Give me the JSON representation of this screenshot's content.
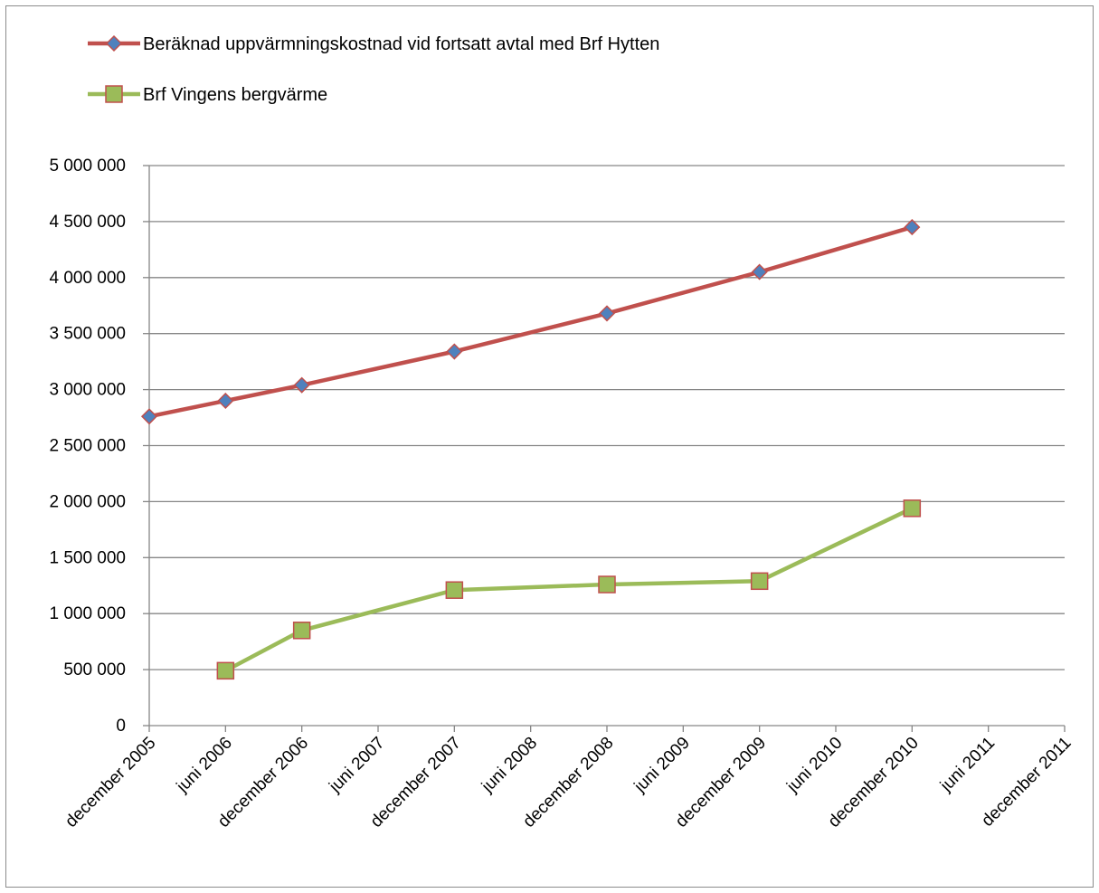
{
  "chart_data": {
    "type": "line",
    "title": "",
    "xlabel": "",
    "ylabel": "",
    "categories": [
      "december 2005",
      "juni 2006",
      "december 2006",
      "juni 2007",
      "december 2007",
      "juni 2008",
      "december 2008",
      "juni 2009",
      "december 2009",
      "juni 2010",
      "december 2010",
      "juni 2011",
      "december 2011"
    ],
    "ylim": [
      0,
      5000000
    ],
    "yticks": [
      0,
      500000,
      1000000,
      1500000,
      2000000,
      2500000,
      3000000,
      3500000,
      4000000,
      4500000,
      5000000
    ],
    "ytick_labels": [
      "0",
      "500 000",
      "1 000 000",
      "1 500 000",
      "2 000 000",
      "2 500 000",
      "3 000 000",
      "3 500 000",
      "4 000 000",
      "4 500 000",
      "5 000 000"
    ],
    "grid": true,
    "legend_position": "top-left",
    "series": [
      {
        "name": "Beräknad uppvärmningskostnad vid fortsatt avtal med Brf Hytten",
        "color": "#c0504d",
        "marker": "diamond",
        "marker_fill": "#4f81bd",
        "points": [
          {
            "x": "december 2005",
            "y": 2760000
          },
          {
            "x": "juni 2006",
            "y": 2900000
          },
          {
            "x": "december 2006",
            "y": 3040000
          },
          {
            "x": "december 2007",
            "y": 3340000
          },
          {
            "x": "december 2008",
            "y": 3680000
          },
          {
            "x": "december 2009",
            "y": 4050000
          },
          {
            "x": "december 2010",
            "y": 4450000
          }
        ]
      },
      {
        "name": "Brf Vingens bergvärme",
        "color": "#9bbb59",
        "marker": "square",
        "marker_fill": "#9bbb59",
        "marker_stroke": "#c0504d",
        "points": [
          {
            "x": "juni 2006",
            "y": 490000
          },
          {
            "x": "december 2006",
            "y": 850000
          },
          {
            "x": "december 2007",
            "y": 1210000
          },
          {
            "x": "december 2008",
            "y": 1260000
          },
          {
            "x": "december 2009",
            "y": 1290000
          },
          {
            "x": "december 2010",
            "y": 1940000
          }
        ]
      }
    ]
  }
}
